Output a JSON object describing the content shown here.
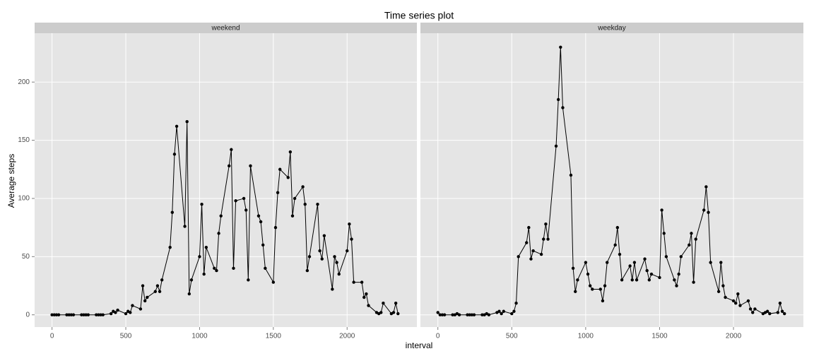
{
  "chart_data": {
    "type": "line",
    "title": "Time series plot",
    "x_label": "interval",
    "y_label": "Average steps",
    "x": [
      0,
      15,
      30,
      45,
      100,
      115,
      130,
      145,
      200,
      215,
      230,
      245,
      300,
      315,
      330,
      345,
      400,
      415,
      430,
      445,
      500,
      515,
      530,
      545,
      600,
      615,
      630,
      645,
      700,
      715,
      730,
      745,
      800,
      815,
      830,
      845,
      900,
      915,
      930,
      945,
      1000,
      1015,
      1030,
      1045,
      1100,
      1115,
      1130,
      1145,
      1200,
      1215,
      1230,
      1245,
      1300,
      1315,
      1330,
      1345,
      1400,
      1415,
      1430,
      1445,
      1500,
      1515,
      1530,
      1545,
      1600,
      1615,
      1630,
      1645,
      1700,
      1715,
      1730,
      1745,
      1800,
      1815,
      1830,
      1845,
      1900,
      1915,
      1930,
      1945,
      2000,
      2015,
      2030,
      2045,
      2100,
      2115,
      2130,
      2145,
      2200,
      2215,
      2230,
      2245,
      2300,
      2315,
      2330,
      2345
    ],
    "xlim": [
      -118,
      2473
    ],
    "xticks": [
      0,
      500,
      1000,
      1500,
      2000
    ],
    "ylim": [
      -10.5,
      242
    ],
    "yticks": [
      0,
      50,
      100,
      150,
      200
    ],
    "grid": true,
    "color": "#000000",
    "panels": [
      {
        "name": "weekend",
        "values": [
          0,
          0,
          0,
          0,
          0,
          0,
          0,
          0,
          0,
          0,
          0,
          0,
          0,
          0,
          0,
          0,
          1,
          3,
          2,
          4,
          1,
          3,
          2,
          8,
          5,
          25,
          12,
          15,
          20,
          25,
          20,
          30,
          58,
          88,
          138,
          162,
          76,
          166,
          18,
          30,
          50,
          95,
          35,
          58,
          40,
          38,
          70,
          85,
          128,
          142,
          40,
          98,
          100,
          90,
          30,
          128,
          85,
          80,
          60,
          40,
          28,
          75,
          105,
          125,
          118,
          140,
          85,
          100,
          110,
          95,
          38,
          50,
          95,
          55,
          48,
          68,
          22,
          50,
          45,
          35,
          55,
          78,
          65,
          28,
          28,
          15,
          18,
          8,
          2,
          1,
          2,
          10,
          1,
          2,
          10,
          1
        ]
      },
      {
        "name": "weekday",
        "values": [
          2,
          0,
          0,
          0,
          0,
          0,
          1,
          0,
          0,
          0,
          0,
          0,
          0,
          0,
          1,
          0,
          2,
          3,
          1,
          3,
          1,
          3,
          10,
          50,
          62,
          75,
          48,
          55,
          52,
          65,
          78,
          65,
          145,
          185,
          230,
          178,
          120,
          40,
          20,
          30,
          45,
          35,
          25,
          22,
          22,
          12,
          25,
          45,
          60,
          75,
          52,
          30,
          42,
          30,
          45,
          30,
          48,
          38,
          30,
          35,
          32,
          90,
          70,
          50,
          30,
          25,
          35,
          50,
          60,
          70,
          28,
          65,
          90,
          110,
          88,
          45,
          20,
          45,
          25,
          15,
          12,
          10,
          18,
          8,
          12,
          5,
          2,
          5,
          1,
          2,
          3,
          1,
          2,
          10,
          3,
          1
        ]
      }
    ]
  }
}
